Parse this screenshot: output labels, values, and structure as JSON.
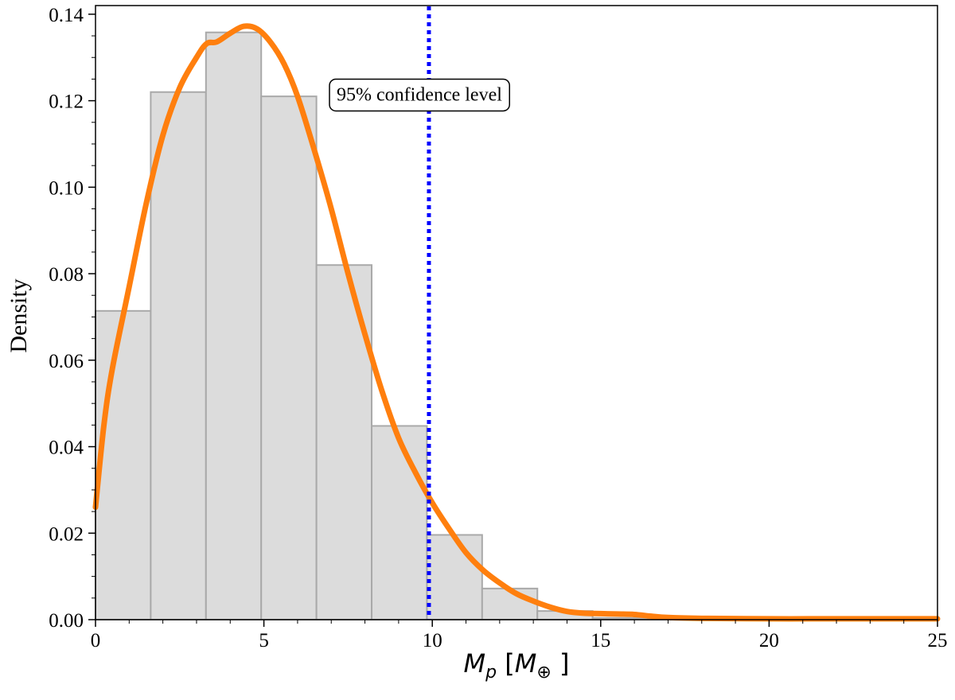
{
  "chart_data": {
    "type": "bar",
    "title": "",
    "xlabel": {
      "main": "M",
      "sub": "p",
      "bracket_open": " [",
      "unit": "M",
      "unit_sub": "⊕",
      "bracket_close": " ]"
    },
    "ylabel": "Density",
    "xlim": [
      0,
      25
    ],
    "ylim": [
      0,
      0.142
    ],
    "xticks": [
      0,
      5,
      10,
      15,
      20,
      25
    ],
    "yticks": [
      0.0,
      0.02,
      0.04,
      0.06,
      0.08,
      0.1,
      0.12,
      0.14
    ],
    "xtick_labels": [
      "0",
      "5",
      "10",
      "15",
      "20",
      "25"
    ],
    "ytick_labels": [
      "0.00",
      "0.02",
      "0.04",
      "0.06",
      "0.08",
      "0.10",
      "0.12",
      "0.14"
    ],
    "grid": false,
    "histogram": {
      "bin_edges": [
        0,
        1.64,
        3.28,
        4.92,
        6.56,
        8.2,
        9.84,
        11.48,
        13.12,
        14.76,
        16.4,
        18.04,
        19.68,
        21.32,
        22.96,
        24.6
      ],
      "densities": [
        0.0714,
        0.122,
        0.1358,
        0.121,
        0.082,
        0.0448,
        0.0196,
        0.0072,
        0.002,
        0.0004,
        0.0001,
        5e-05,
        3e-05,
        2e-05,
        1e-05
      ],
      "fill_color": "#dcdcdc",
      "edge_color": "#a9a9a9"
    },
    "kde": {
      "color": "#ff7f0e",
      "x": [
        0,
        0.25,
        0.5,
        1,
        1.5,
        2,
        2.5,
        3,
        3.3,
        3.6,
        4,
        4.4,
        4.8,
        5.2,
        5.6,
        6,
        6.5,
        7,
        7.5,
        8,
        8.5,
        9,
        9.5,
        10,
        10.5,
        11,
        11.5,
        12,
        12.5,
        13,
        13.5,
        14,
        14.5,
        15,
        15.5,
        16,
        16.5,
        17,
        18,
        20,
        22,
        25
      ],
      "y": [
        0.026,
        0.045,
        0.058,
        0.077,
        0.096,
        0.112,
        0.123,
        0.13,
        0.1332,
        0.1336,
        0.1356,
        0.1372,
        0.1366,
        0.1335,
        0.1285,
        0.121,
        0.1085,
        0.095,
        0.08,
        0.066,
        0.053,
        0.042,
        0.034,
        0.027,
        0.021,
        0.0155,
        0.0115,
        0.0085,
        0.006,
        0.0043,
        0.0029,
        0.0019,
        0.0015,
        0.0014,
        0.0013,
        0.0012,
        0.0008,
        0.0005,
        0.0003,
        0.0002,
        0.0002,
        0.0002
      ]
    },
    "threshold": {
      "x": 9.9,
      "color": "#0000ff",
      "style": "dotted"
    },
    "annotations": [
      {
        "text": "95% confidence level",
        "x": 9.9,
        "y": 0.1215
      }
    ]
  }
}
